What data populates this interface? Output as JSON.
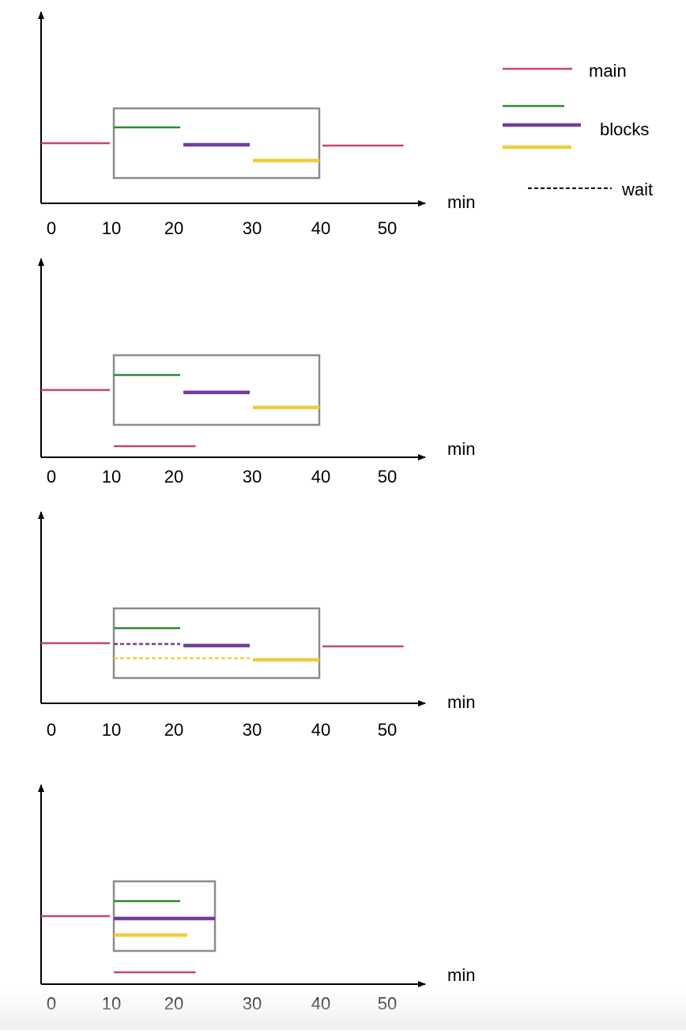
{
  "colors": {
    "main": "#c2447a",
    "block1": "#2d8a32",
    "block2": "#6f3f9e",
    "block3": "#f2cc3f",
    "axis": "#000000",
    "box": "#8c8c8c"
  },
  "legend": {
    "main": "main",
    "blocks": "blocks",
    "wait": "wait"
  },
  "axis_unit": "min",
  "tick_labels": [
    "0",
    "10",
    "20",
    "30",
    "40",
    "50"
  ],
  "panels": [
    {
      "main_before": [
        0,
        10
      ],
      "box": [
        10,
        40
      ],
      "blocks": [
        {
          "color": "block1",
          "start": 10,
          "end": 20
        },
        {
          "color": "block2",
          "start": 20,
          "end": 30
        },
        {
          "color": "block3",
          "start": 30,
          "end": 40
        }
      ],
      "waits": [],
      "main_after": [
        40,
        52
      ],
      "main_below": null
    },
    {
      "main_before": [
        0,
        10
      ],
      "box": [
        10,
        40
      ],
      "blocks": [
        {
          "color": "block1",
          "start": 10,
          "end": 20
        },
        {
          "color": "block2",
          "start": 20,
          "end": 30
        },
        {
          "color": "block3",
          "start": 30,
          "end": 40
        }
      ],
      "waits": [],
      "main_after": null,
      "main_below": [
        10,
        22
      ]
    },
    {
      "main_before": [
        0,
        10
      ],
      "box": [
        10,
        40
      ],
      "blocks": [
        {
          "color": "block1",
          "start": 10,
          "end": 20
        },
        {
          "color": "block2",
          "start": 20,
          "end": 30
        },
        {
          "color": "block3",
          "start": 30,
          "end": 40
        }
      ],
      "waits": [
        {
          "color": "block2",
          "start": 10,
          "end": 20
        },
        {
          "color": "block3",
          "start": 10,
          "end": 30
        }
      ],
      "main_after": [
        40,
        52
      ],
      "main_below": null
    },
    {
      "main_before": [
        0,
        10
      ],
      "box": [
        10,
        25
      ],
      "blocks": [
        {
          "color": "block1",
          "start": 10,
          "end": 20
        },
        {
          "color": "block2",
          "start": 10,
          "end": 25
        },
        {
          "color": "block3",
          "start": 10,
          "end": 21
        }
      ],
      "waits": [],
      "main_after": null,
      "main_below": [
        10,
        22
      ]
    }
  ]
}
